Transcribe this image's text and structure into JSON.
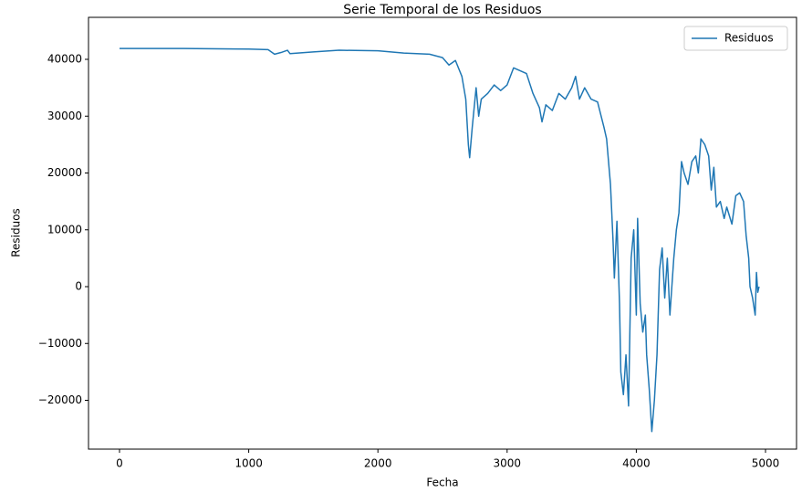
{
  "chart_data": {
    "type": "line",
    "title": "Serie Temporal de los Residuos",
    "x_label": "Fecha",
    "y_label": "Residuos",
    "x": [
      0,
      500,
      1000,
      1150,
      1200,
      1250,
      1300,
      1320,
      1500,
      1700,
      2000,
      2200,
      2400,
      2500,
      2550,
      2600,
      2650,
      2680,
      2700,
      2710,
      2730,
      2760,
      2780,
      2800,
      2850,
      2900,
      2950,
      3000,
      3050,
      3100,
      3150,
      3200,
      3250,
      3270,
      3300,
      3350,
      3400,
      3450,
      3500,
      3530,
      3560,
      3600,
      3650,
      3700,
      3750,
      3770,
      3800,
      3820,
      3830,
      3850,
      3870,
      3880,
      3900,
      3920,
      3940,
      3960,
      3980,
      4000,
      4010,
      4030,
      4050,
      4070,
      4080,
      4100,
      4120,
      4140,
      4160,
      4180,
      4200,
      4220,
      4240,
      4260,
      4290,
      4310,
      4330,
      4350,
      4370,
      4400,
      4430,
      4460,
      4480,
      4500,
      4530,
      4560,
      4580,
      4600,
      4620,
      4650,
      4680,
      4700,
      4740,
      4770,
      4800,
      4830,
      4850,
      4870,
      4880,
      4900,
      4920,
      4930,
      4940,
      4950
    ],
    "series": [
      {
        "name": "Residuos",
        "color": "#1f77b4",
        "values": [
          41900,
          41900,
          41800,
          41700,
          40900,
          41200,
          41600,
          41000,
          41300,
          41600,
          41500,
          41100,
          40900,
          40300,
          39000,
          39800,
          37000,
          33000,
          25000,
          22700,
          28000,
          35000,
          30000,
          33000,
          34000,
          35500,
          34500,
          35500,
          38500,
          38000,
          37500,
          34000,
          31500,
          29000,
          32000,
          31000,
          34000,
          33000,
          35000,
          37000,
          33000,
          35000,
          33000,
          32500,
          28000,
          26000,
          18000,
          8000,
          1500,
          11500,
          -3000,
          -15000,
          -19000,
          -12000,
          -21000,
          5000,
          10000,
          -5000,
          12000,
          -3000,
          -8000,
          -5000,
          -12000,
          -18000,
          -25500,
          -20000,
          -12000,
          3000,
          6800,
          -2000,
          5000,
          -5000,
          5000,
          10000,
          13000,
          22000,
          20000,
          18000,
          22000,
          23000,
          20000,
          26000,
          25000,
          23000,
          17000,
          21000,
          14000,
          15000,
          12000,
          14000,
          11000,
          16000,
          16500,
          15000,
          9000,
          5000,
          0,
          -2000,
          -5000,
          2500,
          -1000,
          0
        ]
      }
    ],
    "xlim": [
      -240,
      5240
    ],
    "ylim": [
      -28594,
      47390
    ],
    "xticks": [
      0,
      1000,
      2000,
      3000,
      4000,
      5000
    ],
    "yticks": [
      {
        "value": -20000,
        "label": "−20000"
      },
      {
        "value": -10000,
        "label": "−10000"
      },
      0,
      10000,
      20000,
      30000,
      40000
    ],
    "grid": false,
    "legend": "upper right"
  }
}
